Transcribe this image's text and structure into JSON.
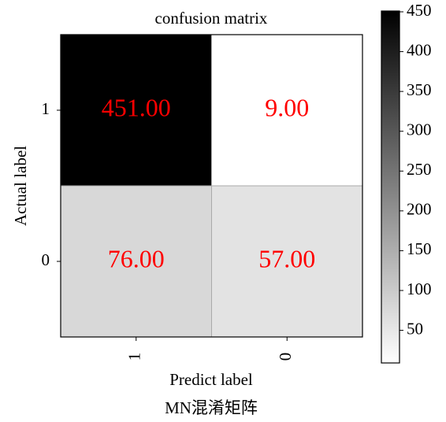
{
  "chart_data": {
    "type": "heatmap",
    "title": "confusion matrix",
    "x_label": "Predict label",
    "y_label": "Actual label",
    "caption": "MN混淆矩阵",
    "x_categories": [
      "1",
      "0"
    ],
    "y_categories": [
      "1",
      "0"
    ],
    "values": [
      [
        451,
        9
      ],
      [
        76,
        57
      ]
    ],
    "value_labels": [
      [
        "451.00",
        "9.00"
      ],
      [
        "76.00",
        "57.00"
      ]
    ],
    "value_color": "#ff0000",
    "colormap": "Greys",
    "clim": [
      9,
      451
    ],
    "cticks": [
      50,
      100,
      150,
      200,
      250,
      300,
      350,
      400,
      450
    ]
  }
}
